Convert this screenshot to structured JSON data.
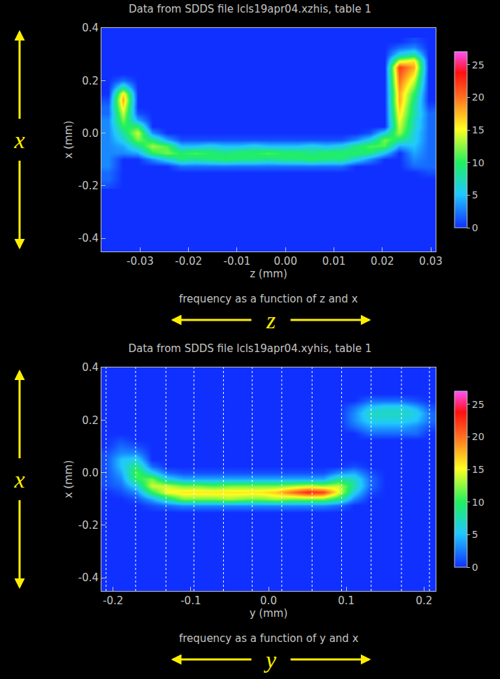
{
  "chart_data": [
    {
      "type": "heatmap",
      "title": "Data from SDDS file lcls19apr04.xzhis, table 1",
      "xlabel": "z (mm)",
      "ylabel": "x (mm)",
      "caption": "frequency as a function of z and x",
      "arrow_labels": {
        "vertical": "x",
        "horizontal": "z"
      },
      "xlim": [
        -0.038,
        0.031
      ],
      "ylim": [
        -0.45,
        0.4
      ],
      "xticks": [
        -0.03,
        -0.02,
        -0.01,
        {
          "value": 0,
          "label": "0.00"
        },
        0.01,
        0.02,
        0.03
      ],
      "yticks": [
        -0.4,
        -0.2,
        {
          "value": 0,
          "label": "0.0"
        },
        0.2,
        0.4
      ],
      "zlim": [
        0,
        27
      ],
      "zticks": [
        0,
        5,
        10,
        15,
        20,
        25
      ],
      "grid": false,
      "x": [
        -0.0365,
        -0.0335,
        -0.0305,
        -0.0275,
        -0.0245,
        -0.0215,
        -0.0185,
        -0.0155,
        -0.0125,
        -0.0095,
        -0.0065,
        -0.0035,
        -0.0005,
        0.0025,
        0.0055,
        0.0085,
        0.0115,
        0.0145,
        0.0175,
        0.0205,
        0.0235,
        0.0265,
        0.0295
      ],
      "y": [
        -0.2,
        -0.175,
        -0.15,
        -0.125,
        -0.1,
        -0.075,
        -0.05,
        -0.025,
        0,
        0.025,
        0.05,
        0.075,
        0.1,
        0.125,
        0.15,
        0.175,
        0.2,
        0.225,
        0.25,
        0.275,
        0.3,
        0.325,
        0.35
      ],
      "cells": [
        [
          1,
          0,
          0,
          0,
          0,
          0,
          0,
          0,
          0,
          0,
          0,
          0,
          0,
          0,
          0,
          0,
          0,
          0,
          0,
          0,
          0,
          0,
          0
        ],
        [
          2,
          0,
          0,
          0,
          0,
          0,
          0,
          0,
          0,
          0,
          0,
          0,
          0,
          0,
          0,
          0,
          0,
          0,
          0,
          0,
          0,
          0,
          0
        ],
        [
          2,
          0,
          0,
          0,
          0,
          0,
          0,
          0,
          0,
          0,
          0,
          0,
          0,
          0,
          0,
          0,
          0,
          0,
          0,
          0,
          0,
          0,
          1
        ],
        [
          3,
          0,
          0,
          0,
          0,
          2,
          2,
          2,
          2,
          2,
          2,
          2,
          2,
          2,
          2,
          2,
          2,
          0,
          0,
          0,
          0,
          2,
          2
        ],
        [
          3,
          0,
          0,
          3,
          6,
          9,
          8,
          9,
          10,
          9,
          9,
          8,
          9,
          9,
          10,
          9,
          9,
          6,
          3,
          0,
          0,
          3,
          2
        ],
        [
          3,
          3,
          4,
          10,
          12,
          10,
          11,
          10,
          9,
          10,
          10,
          11,
          10,
          10,
          9,
          10,
          10,
          10,
          9,
          5,
          0,
          4,
          2
        ],
        [
          3,
          4,
          8,
          13,
          11,
          5,
          5,
          6,
          5,
          5,
          6,
          5,
          5,
          5,
          6,
          5,
          6,
          9,
          11,
          11,
          4,
          5,
          2
        ],
        [
          3,
          6,
          12,
          9,
          4,
          1,
          1,
          1,
          1,
          1,
          1,
          1,
          1,
          1,
          1,
          1,
          1,
          3,
          6,
          12,
          9,
          6,
          2
        ],
        [
          3,
          8,
          14,
          3,
          0,
          0,
          0,
          0,
          0,
          0,
          0,
          0,
          0,
          0,
          0,
          0,
          0,
          0,
          1,
          6,
          13,
          6,
          2
        ],
        [
          3,
          10,
          10,
          0,
          0,
          0,
          0,
          0,
          0,
          0,
          0,
          0,
          0,
          0,
          0,
          0,
          0,
          0,
          0,
          0,
          14,
          7,
          2
        ],
        [
          3,
          12,
          4,
          0,
          0,
          0,
          0,
          0,
          0,
          0,
          0,
          0,
          0,
          0,
          0,
          0,
          0,
          0,
          0,
          0,
          15,
          7,
          2
        ],
        [
          2,
          14,
          1,
          0,
          0,
          0,
          0,
          0,
          0,
          0,
          0,
          0,
          0,
          0,
          0,
          0,
          0,
          0,
          0,
          0,
          16,
          8,
          2
        ],
        [
          2,
          16,
          0,
          0,
          0,
          0,
          0,
          0,
          0,
          0,
          0,
          0,
          0,
          0,
          0,
          0,
          0,
          0,
          0,
          0,
          17,
          8,
          1
        ],
        [
          1,
          18,
          0,
          0,
          0,
          0,
          0,
          0,
          0,
          0,
          0,
          0,
          0,
          0,
          0,
          0,
          0,
          0,
          0,
          0,
          18,
          9,
          0
        ],
        [
          0,
          16,
          0,
          0,
          0,
          0,
          0,
          0,
          0,
          0,
          0,
          0,
          0,
          0,
          0,
          0,
          0,
          0,
          0,
          0,
          18,
          10,
          0
        ],
        [
          0,
          8,
          0,
          0,
          0,
          0,
          0,
          0,
          0,
          0,
          0,
          0,
          0,
          0,
          0,
          0,
          0,
          0,
          0,
          0,
          19,
          12,
          0
        ],
        [
          0,
          2,
          0,
          0,
          0,
          0,
          0,
          0,
          0,
          0,
          0,
          0,
          0,
          0,
          0,
          0,
          0,
          0,
          0,
          0,
          20,
          14,
          0
        ],
        [
          0,
          0,
          0,
          0,
          0,
          0,
          0,
          0,
          0,
          0,
          0,
          0,
          0,
          0,
          0,
          0,
          0,
          0,
          0,
          0,
          21,
          16,
          0
        ],
        [
          0,
          0,
          0,
          0,
          0,
          0,
          0,
          0,
          0,
          0,
          0,
          0,
          0,
          0,
          0,
          0,
          0,
          0,
          0,
          0,
          22,
          18,
          0
        ],
        [
          0,
          0,
          0,
          0,
          0,
          0,
          0,
          0,
          0,
          0,
          0,
          0,
          0,
          0,
          0,
          0,
          0,
          0,
          0,
          0,
          14,
          16,
          0
        ],
        [
          0,
          0,
          0,
          0,
          0,
          0,
          0,
          0,
          0,
          0,
          0,
          0,
          0,
          0,
          0,
          0,
          0,
          0,
          0,
          0,
          6,
          8,
          0
        ],
        [
          0,
          0,
          0,
          0,
          0,
          0,
          0,
          0,
          0,
          0,
          0,
          0,
          0,
          0,
          0,
          0,
          0,
          0,
          0,
          0,
          2,
          3,
          0
        ],
        [
          0,
          0,
          0,
          0,
          0,
          0,
          0,
          0,
          0,
          0,
          0,
          0,
          0,
          0,
          0,
          0,
          0,
          0,
          0,
          0,
          0,
          1,
          0
        ]
      ]
    },
    {
      "type": "heatmap",
      "title": "Data from SDDS file lcls19apr04.xyhis, table 1",
      "xlabel": "y (mm)",
      "ylabel": "x (mm)",
      "caption": "frequency as a function of y and x",
      "arrow_labels": {
        "vertical": "x",
        "horizontal": "y"
      },
      "xlim": [
        -0.215,
        0.215
      ],
      "ylim": [
        -0.45,
        0.4
      ],
      "xticks": [
        -0.2,
        -0.1,
        {
          "value": 0,
          "label": "0.0"
        },
        0.1,
        0.2
      ],
      "yticks": [
        -0.4,
        -0.2,
        {
          "value": 0,
          "label": "0.0"
        },
        0.2,
        0.4
      ],
      "zlim": [
        0,
        27
      ],
      "zticks": [
        0,
        5,
        10,
        15,
        20,
        25
      ],
      "grid": false,
      "slice_lines": [
        -0.209,
        -0.171,
        -0.132,
        -0.096,
        -0.058,
        -0.021,
        0.017,
        0.056,
        0.094,
        0.132,
        0.171,
        0.207
      ],
      "x": [
        -0.21,
        -0.19,
        -0.17,
        -0.15,
        -0.13,
        -0.11,
        -0.09,
        -0.07,
        -0.05,
        -0.03,
        -0.01,
        0.01,
        0.03,
        0.05,
        0.07,
        0.09,
        0.11,
        0.13,
        0.15,
        0.17,
        0.19,
        0.21
      ],
      "y": [
        -0.15,
        -0.125,
        -0.1,
        -0.075,
        -0.05,
        -0.025,
        0,
        0.025,
        0.05,
        0.075,
        0.1,
        0.125,
        0.15,
        0.175,
        0.2,
        0.225,
        0.25,
        0.275,
        0.3,
        0.325
      ],
      "cells": [
        [
          0,
          0,
          0,
          0,
          0,
          0,
          0,
          0,
          0,
          0,
          0,
          0,
          0,
          0,
          0,
          0,
          0,
          0,
          0,
          0,
          0,
          0
        ],
        [
          0,
          0,
          0,
          1,
          2,
          3,
          3,
          3,
          3,
          3,
          3,
          3,
          3,
          3,
          3,
          2,
          0,
          0,
          0,
          0,
          0,
          0
        ],
        [
          0,
          0,
          1,
          4,
          8,
          12,
          12,
          12,
          13,
          12,
          12,
          13,
          12,
          12,
          12,
          9,
          3,
          0,
          0,
          0,
          0,
          0
        ],
        [
          0,
          1,
          3,
          10,
          15,
          16,
          16,
          16,
          16,
          16,
          16,
          17,
          20,
          23,
          22,
          15,
          6,
          1,
          0,
          0,
          0,
          0
        ],
        [
          1,
          2,
          6,
          14,
          14,
          12,
          12,
          11,
          12,
          12,
          12,
          12,
          13,
          14,
          13,
          14,
          8,
          2,
          0,
          0,
          0,
          0
        ],
        [
          1,
          3,
          10,
          12,
          6,
          4,
          4,
          4,
          4,
          4,
          4,
          4,
          4,
          4,
          4,
          8,
          7,
          2,
          0,
          0,
          0,
          0
        ],
        [
          1,
          4,
          11,
          6,
          2,
          1,
          1,
          1,
          1,
          1,
          1,
          1,
          1,
          1,
          1,
          3,
          4,
          1,
          0,
          0,
          0,
          0
        ],
        [
          1,
          5,
          9,
          2,
          0,
          0,
          0,
          0,
          0,
          0,
          0,
          0,
          0,
          0,
          0,
          0,
          1,
          0,
          0,
          0,
          0,
          0
        ],
        [
          1,
          5,
          6,
          0,
          0,
          0,
          0,
          0,
          0,
          0,
          0,
          0,
          0,
          0,
          0,
          0,
          0,
          0,
          0,
          0,
          0,
          0
        ],
        [
          1,
          3,
          3,
          0,
          0,
          0,
          0,
          0,
          0,
          0,
          0,
          0,
          0,
          0,
          0,
          0,
          0,
          0,
          0,
          0,
          0,
          0
        ],
        [
          0,
          2,
          1,
          0,
          0,
          0,
          0,
          0,
          0,
          0,
          0,
          0,
          0,
          0,
          0,
          0,
          0,
          0,
          0,
          0,
          0,
          0
        ],
        [
          0,
          1,
          0,
          0,
          0,
          0,
          0,
          0,
          0,
          0,
          0,
          0,
          0,
          0,
          0,
          0,
          0,
          0,
          0,
          0,
          0,
          0
        ],
        [
          0,
          0,
          0,
          0,
          0,
          0,
          0,
          0,
          0,
          0,
          0,
          0,
          0,
          0,
          0,
          0,
          0,
          2,
          2,
          2,
          2,
          0
        ],
        [
          0,
          0,
          0,
          0,
          0,
          0,
          0,
          0,
          0,
          0,
          0,
          0,
          0,
          0,
          0,
          0,
          2,
          4,
          4,
          4,
          3,
          1
        ],
        [
          0,
          0,
          0,
          0,
          0,
          0,
          0,
          0,
          0,
          0,
          0,
          0,
          0,
          0,
          0,
          0,
          3,
          6,
          6,
          6,
          5,
          2
        ],
        [
          0,
          0,
          0,
          0,
          0,
          0,
          0,
          0,
          0,
          0,
          0,
          0,
          0,
          0,
          0,
          0,
          3,
          7,
          7,
          7,
          6,
          2
        ],
        [
          0,
          0,
          0,
          0,
          0,
          0,
          0,
          0,
          0,
          0,
          0,
          0,
          0,
          0,
          0,
          0,
          2,
          5,
          6,
          6,
          4,
          1
        ],
        [
          0,
          0,
          0,
          0,
          0,
          0,
          0,
          0,
          0,
          0,
          0,
          0,
          0,
          0,
          0,
          0,
          0,
          2,
          2,
          2,
          1,
          0
        ],
        [
          0,
          0,
          0,
          0,
          0,
          0,
          0,
          0,
          0,
          0,
          0,
          0,
          0,
          0,
          0,
          0,
          0,
          0,
          0,
          0,
          0,
          0
        ],
        [
          0,
          0,
          0,
          0,
          0,
          0,
          0,
          0,
          0,
          0,
          0,
          0,
          0,
          0,
          0,
          0,
          0,
          0,
          0,
          0,
          0,
          0
        ]
      ]
    }
  ]
}
